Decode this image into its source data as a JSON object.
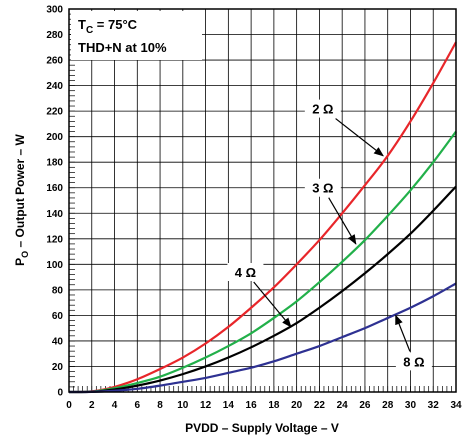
{
  "chart_data": {
    "type": "line",
    "xlabel": "PVDD – Supply Voltage – V",
    "ylabel": {
      "base": "P",
      "sub": "O",
      "rest": " – Output Power – W"
    },
    "xlim": [
      0,
      34
    ],
    "ylim": [
      0,
      300
    ],
    "xticks": [
      0,
      2,
      4,
      6,
      8,
      10,
      12,
      14,
      16,
      18,
      20,
      22,
      24,
      26,
      28,
      30,
      32,
      34
    ],
    "yticks": [
      0,
      20,
      40,
      60,
      80,
      100,
      120,
      140,
      160,
      180,
      200,
      220,
      240,
      260,
      280,
      300
    ],
    "grid": true,
    "conditions": [
      {
        "base": "T",
        "sub": "C",
        "rest": " = 75°C"
      },
      {
        "base": "THD+N at 10%",
        "sub": "",
        "rest": ""
      }
    ],
    "series": [
      {
        "name": "2 Ω",
        "color": "#e8262a",
        "x": [
          0,
          2,
          4,
          6,
          8,
          10,
          12,
          14,
          16,
          18,
          20,
          22,
          24,
          26,
          28,
          30,
          32,
          34
        ],
        "y": [
          0,
          0.5,
          4,
          10,
          18,
          27,
          38,
          51,
          66,
          82,
          100,
          119,
          140,
          162,
          185,
          212,
          242,
          274
        ]
      },
      {
        "name": "3 Ω",
        "color": "#22b04a",
        "x": [
          0,
          2,
          4,
          6,
          8,
          10,
          12,
          14,
          16,
          18,
          20,
          22,
          24,
          26,
          28,
          30,
          32,
          34
        ],
        "y": [
          0,
          0.3,
          3,
          7,
          12,
          19,
          27,
          36,
          46,
          58,
          71,
          86,
          102,
          119,
          138,
          158,
          180,
          204
        ]
      },
      {
        "name": "4 Ω",
        "color": "#000000",
        "x": [
          0,
          2,
          4,
          6,
          8,
          10,
          12,
          14,
          16,
          18,
          20,
          22,
          24,
          26,
          28,
          30,
          32,
          34
        ],
        "y": [
          0,
          0.2,
          2,
          5,
          9,
          14,
          20,
          27,
          35,
          44,
          54,
          66,
          79,
          93,
          108,
          124,
          142,
          161
        ]
      },
      {
        "name": "8 Ω",
        "color": "#2e3192",
        "x": [
          0,
          2,
          4,
          6,
          8,
          10,
          12,
          14,
          16,
          18,
          20,
          22,
          24,
          26,
          28,
          30,
          32,
          34
        ],
        "y": [
          0,
          0.1,
          1,
          2.5,
          5,
          8,
          11,
          15,
          19,
          24,
          30,
          36,
          43,
          50,
          58,
          66,
          75,
          85
        ]
      }
    ],
    "annotations": [
      {
        "label": "2 Ω",
        "x": 22.3,
        "y": 222,
        "arrow_to": [
          27.6,
          185
        ]
      },
      {
        "label": "3 Ω",
        "x": 22.3,
        "y": 160,
        "arrow_to": [
          25.2,
          116
        ]
      },
      {
        "label": "4 Ω",
        "x": 15.5,
        "y": 94,
        "arrow_to": [
          19.5,
          51
        ]
      },
      {
        "label": "8 Ω",
        "x": 30.3,
        "y": 24,
        "arrow_to": [
          28.7,
          60
        ]
      }
    ]
  }
}
